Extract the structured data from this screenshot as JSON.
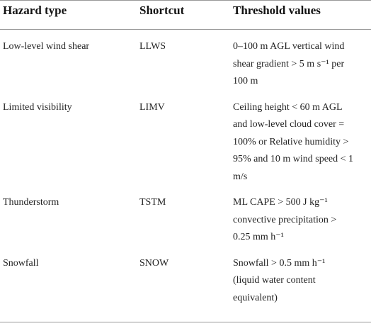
{
  "table": {
    "header": [
      "Hazard type",
      "Shortcut",
      "Threshold values"
    ],
    "rows": [
      [
        "Low-level wind shear",
        "LLWS",
        [
          "0–100 m AGL vertical wind",
          "shear gradient > 5 m s⁻¹ per",
          "100 m"
        ]
      ],
      [
        "Limited visibility",
        "LIMV",
        [
          "Ceiling height < 60 m AGL",
          "and low-level cloud cover =",
          "100% or Relative humidity >",
          "95% and 10 m wind speed < 1",
          "m/s"
        ]
      ],
      [
        "Thunderstorm",
        "TSTM",
        [
          "ML CAPE > 500 J kg⁻¹",
          "convective precipitation >",
          "0.25 mm h⁻¹"
        ]
      ],
      [
        "Snowfall",
        "SNOW",
        [
          "Snowfall > 0.5 mm h⁻¹",
          "(liquid water content",
          "equivalent)"
        ]
      ]
    ]
  }
}
